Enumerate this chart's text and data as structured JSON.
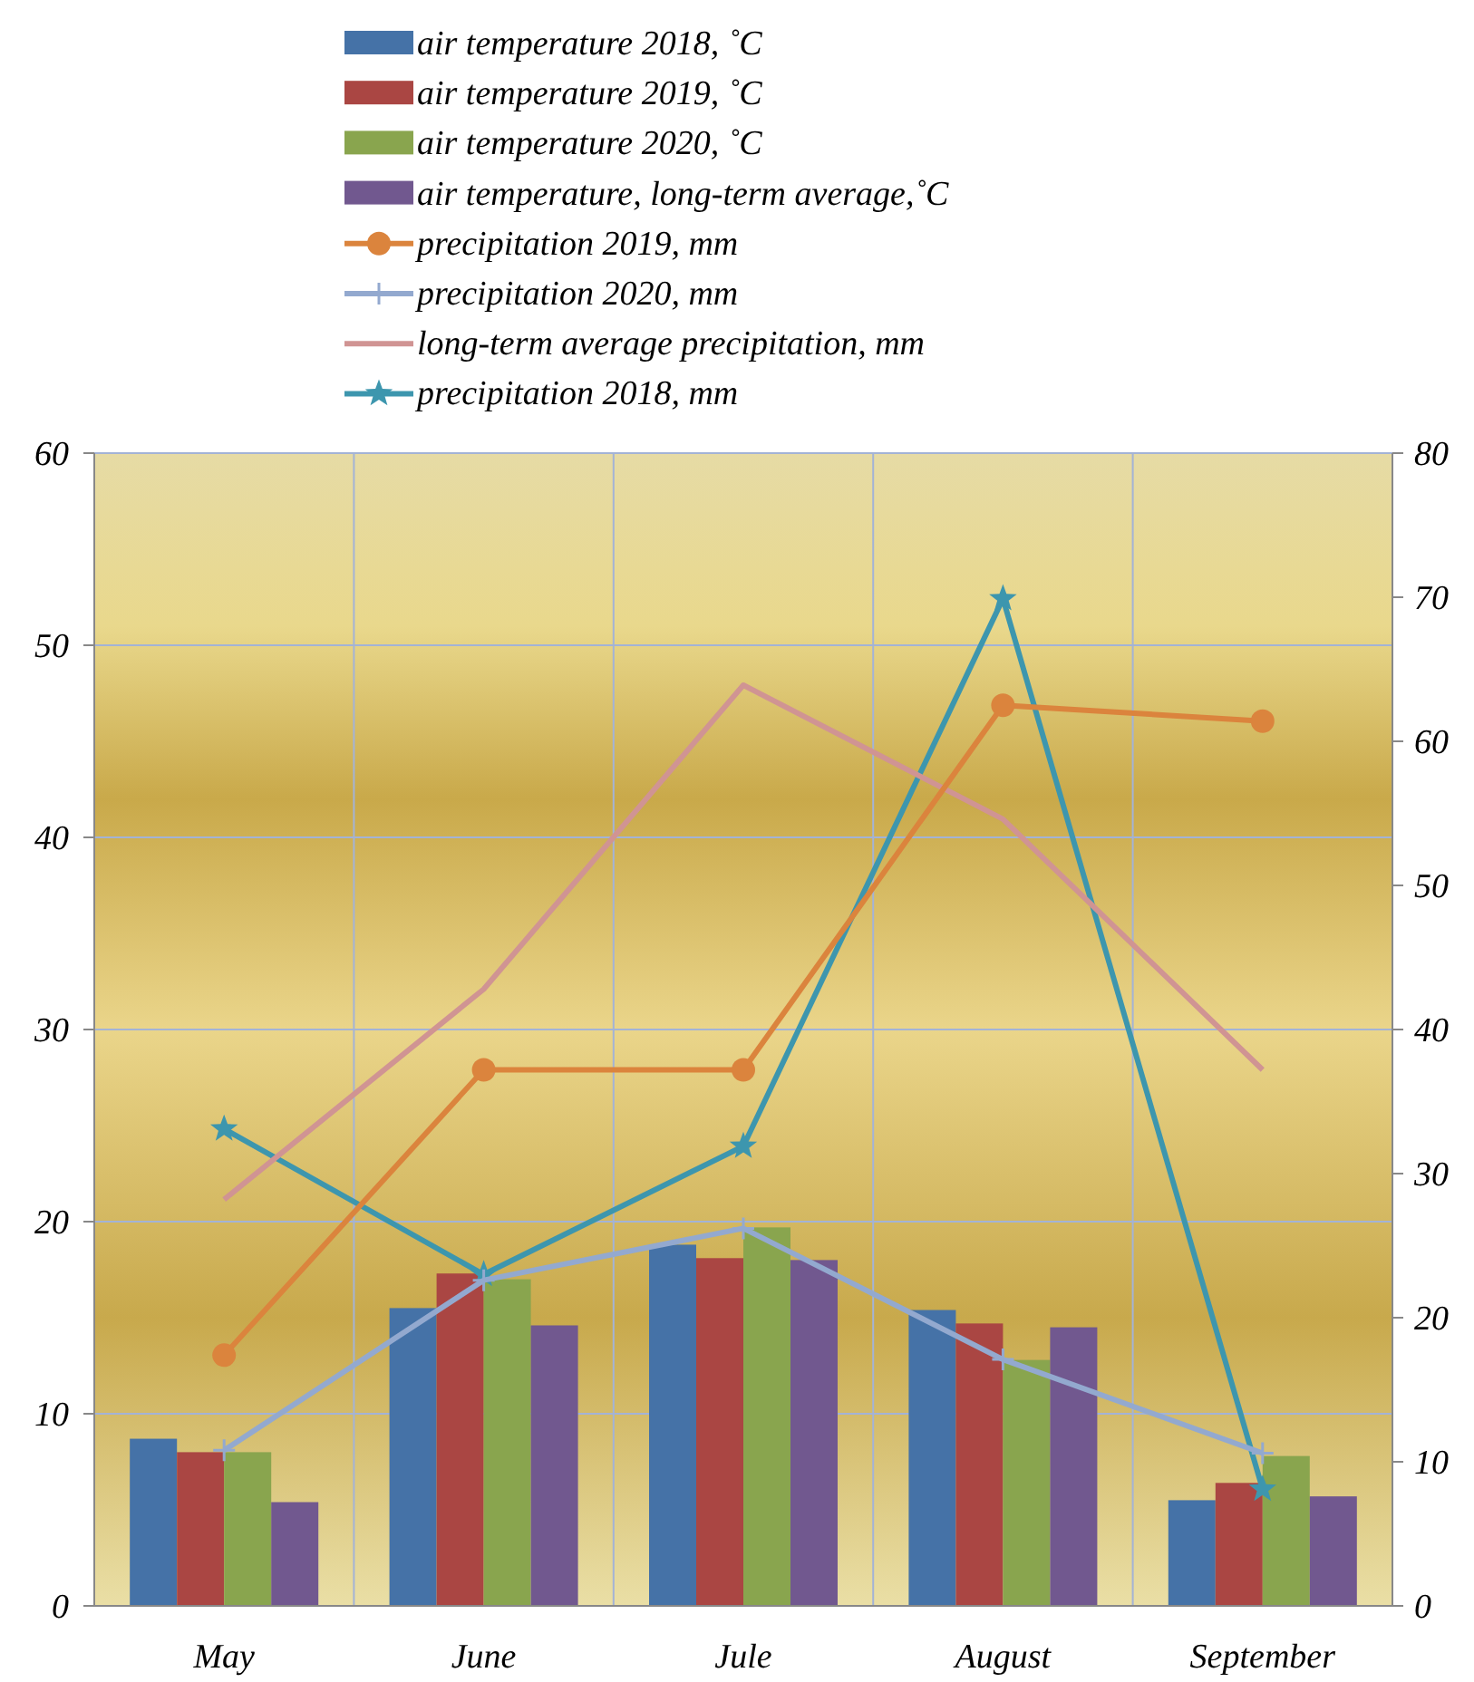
{
  "chart_data": {
    "type": "bar",
    "categories": [
      "May",
      "June",
      "Jule",
      "August",
      "September"
    ],
    "series": [
      {
        "name": "air temperature 2018, ˚C",
        "color": "#4572a7",
        "values": [
          8.7,
          15.5,
          18.8,
          15.4,
          5.5
        ]
      },
      {
        "name": "air temperature 2019, ˚C",
        "color": "#aa4643",
        "values": [
          8.0,
          17.3,
          18.1,
          14.7,
          6.4
        ]
      },
      {
        "name": "air temperature 2020, ˚C",
        "color": "#89a54e",
        "values": [
          8.0,
          17.0,
          19.7,
          12.8,
          7.8
        ]
      },
      {
        "name": "air temperature, long-term average,˚C",
        "color": "#71588f",
        "values": [
          5.4,
          14.6,
          18.0,
          14.5,
          5.7
        ]
      },
      {
        "name": "precipitation 2019, mm",
        "color": "#db843d",
        "type": "line",
        "axis": "y2",
        "marker": "circle",
        "values": [
          17.4,
          37.2,
          37.2,
          62.5,
          61.4
        ]
      },
      {
        "name": "precipitation 2020, mm",
        "color": "#93a9cf",
        "type": "line",
        "axis": "y2",
        "marker": "cross",
        "values": [
          10.8,
          22.6,
          26.2,
          17.1,
          10.6
        ]
      },
      {
        "name": "long-term average precipitation, mm",
        "color": "#d09493",
        "type": "line",
        "axis": "y2",
        "marker": "none",
        "values": [
          28.2,
          42.8,
          63.9,
          54.6,
          37.2
        ]
      },
      {
        "name": "precipitation 2018, mm",
        "color": "#3d96ae",
        "type": "line",
        "axis": "y2",
        "marker": "star",
        "values": [
          33.1,
          23.0,
          31.9,
          69.9,
          8.1
        ]
      }
    ],
    "ylim": [
      0,
      60
    ],
    "yticks": [
      0,
      10,
      20,
      30,
      40,
      50,
      60
    ],
    "y2lim": [
      0,
      80
    ],
    "y2ticks": [
      0,
      10,
      20,
      30,
      40,
      50,
      60,
      70,
      80
    ],
    "grid": true,
    "legend": "top"
  }
}
